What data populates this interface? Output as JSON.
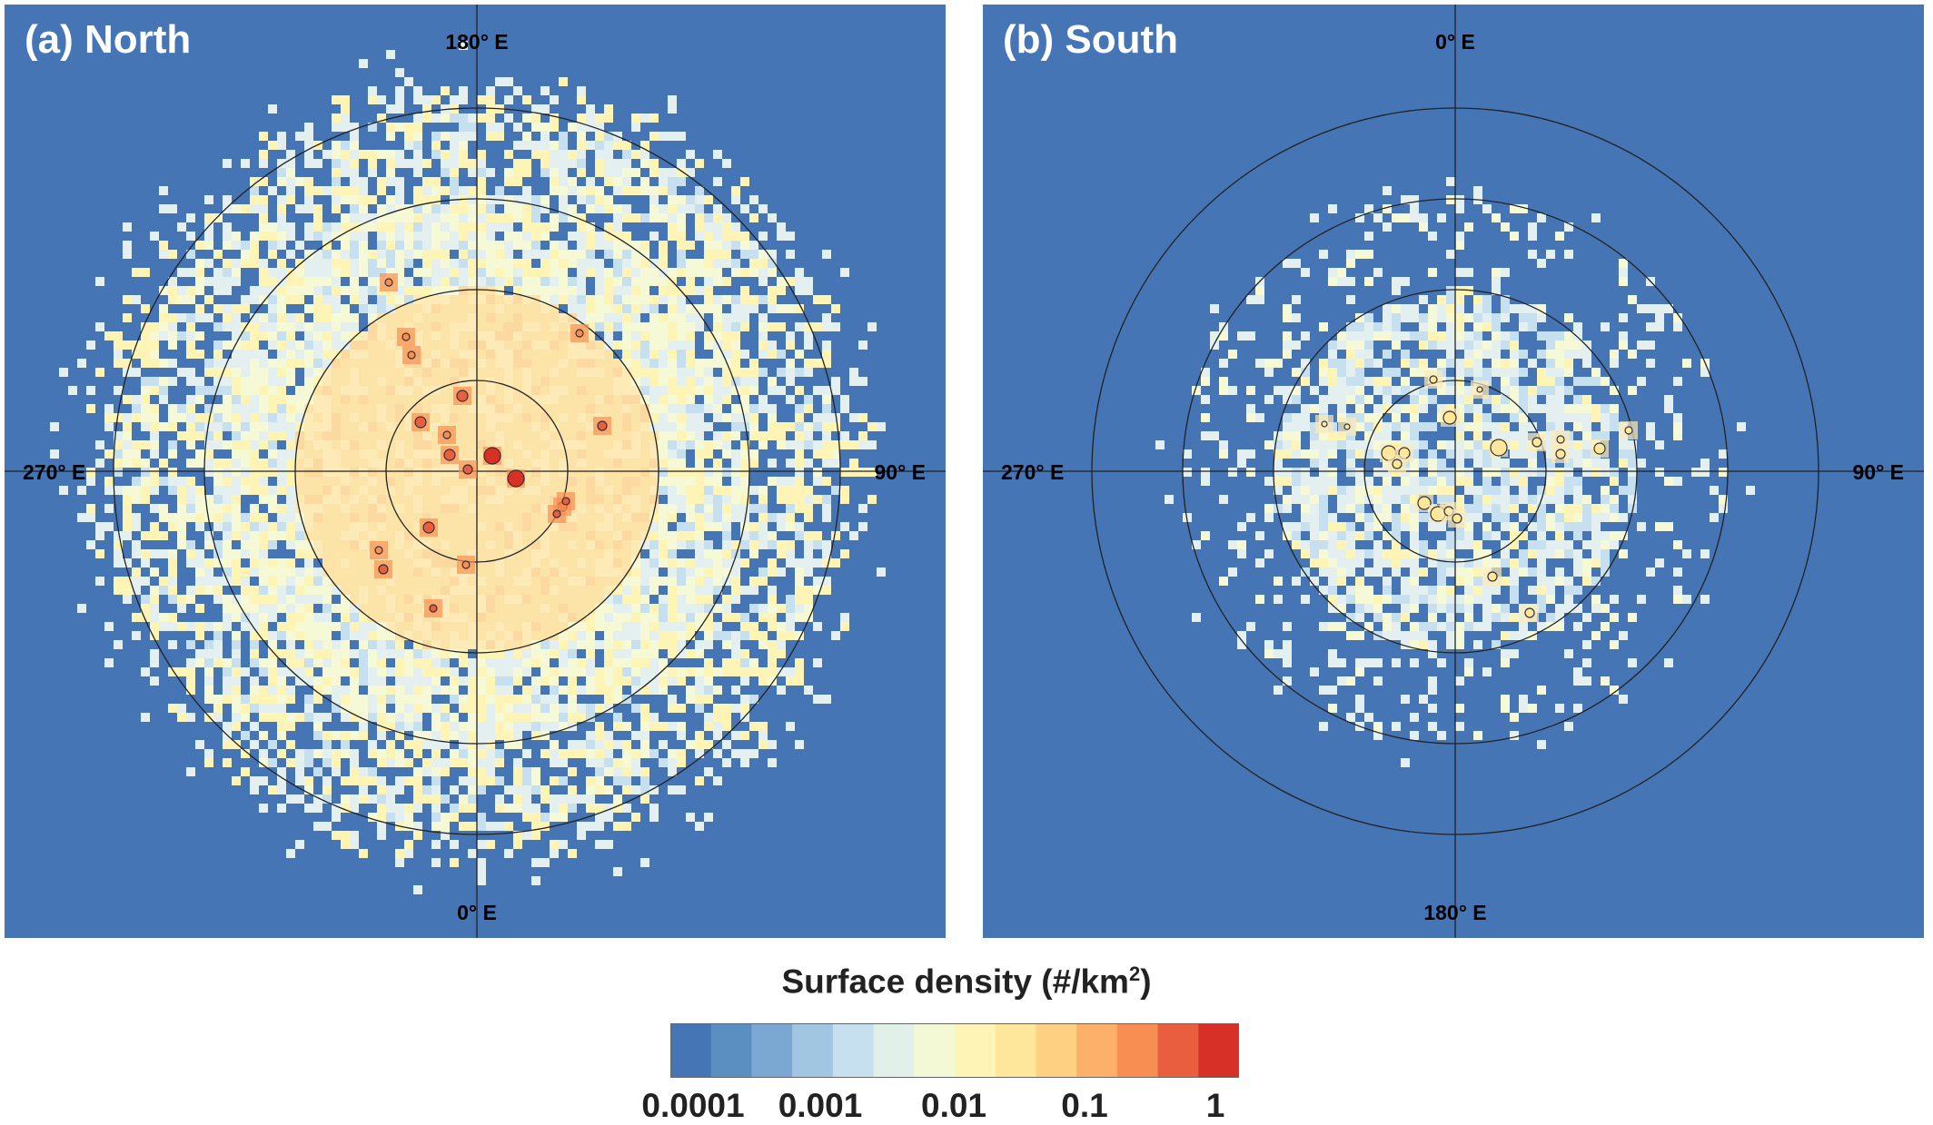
{
  "chart_data": [
    {
      "type": "heatmap",
      "title": "(a) North",
      "projection": "polar stereographic",
      "longitude_labels": {
        "top": "180° E",
        "right": "90° E",
        "bottom": "0° E",
        "left": "270° E"
      },
      "rings": 4,
      "grid": true,
      "background_color": "#4575b4",
      "dominant_density": "≈0.01 (light yellow) in the inner region, 0.001–0.01 in the outer ring",
      "hotspots": [
        {
          "position": "near pole",
          "density_level": "≈1"
        },
        {
          "position": "scattered inner region",
          "density_level": "≈0.1–1"
        }
      ]
    },
    {
      "type": "heatmap",
      "title": "(b) South",
      "projection": "polar stereographic",
      "longitude_labels": {
        "top": "0° E",
        "right": "90° E",
        "bottom": "180° E",
        "left": "270° E"
      },
      "rings": 4,
      "grid": true,
      "background_color": "#4575b4",
      "dominant_density": "≈0.001 (light blue) with sparse cells",
      "hotspots": [
        {
          "position": "scattered inner region",
          "density_level": "≈0.01–0.1"
        }
      ]
    }
  ],
  "colorbar": {
    "title": "Surface density (#/km",
    "title_sup": "2",
    "title_end": ")",
    "scale": "log",
    "range": [
      0.0001,
      1
    ],
    "tick_labels": [
      "0.0001",
      "0.001",
      "0.01",
      "0.1",
      "1"
    ],
    "colors": [
      "#4575b4",
      "#5b8fc2",
      "#7ba8d2",
      "#a1c6e2",
      "#c6e0ef",
      "#e1f1e9",
      "#f3f9d4",
      "#fdf4b6",
      "#fee69a",
      "#fed081",
      "#fdb06a",
      "#f98e52",
      "#e85e3f",
      "#d73027"
    ]
  }
}
